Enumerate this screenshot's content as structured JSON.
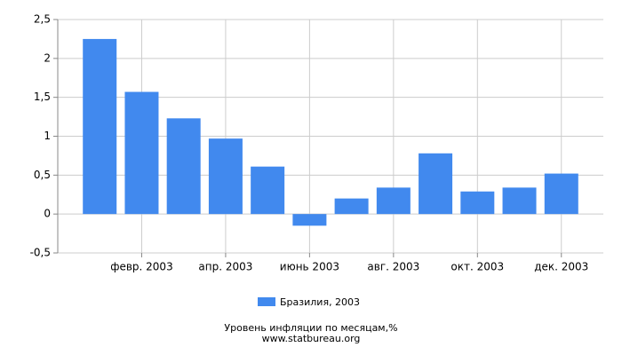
{
  "chart_data": {
    "type": "bar",
    "title": "Уровень инфляции по месяцам,%",
    "subtitle": "www.statbureau.org",
    "categories": [
      null,
      "февр. 2003",
      null,
      "апр. 2003",
      null,
      "июнь 2003",
      null,
      "авг. 2003",
      null,
      "окт. 2003",
      null,
      "дек. 2003"
    ],
    "series": [
      {
        "name": "Бразилия, 2003",
        "color": "#4189ee",
        "values": [
          2.25,
          1.57,
          1.23,
          0.97,
          0.61,
          -0.15,
          0.2,
          0.34,
          0.78,
          0.29,
          0.34,
          0.52
        ]
      }
    ],
    "ylim": [
      -0.5,
      2.5
    ],
    "yticks": [
      {
        "value": -0.5,
        "label": "-0,5"
      },
      0,
      {
        "value": 0.5,
        "label": "0,5"
      },
      1,
      {
        "value": 1.5,
        "label": "1,5"
      },
      2,
      {
        "value": 2.5,
        "label": "2,5"
      }
    ],
    "grid": true
  }
}
